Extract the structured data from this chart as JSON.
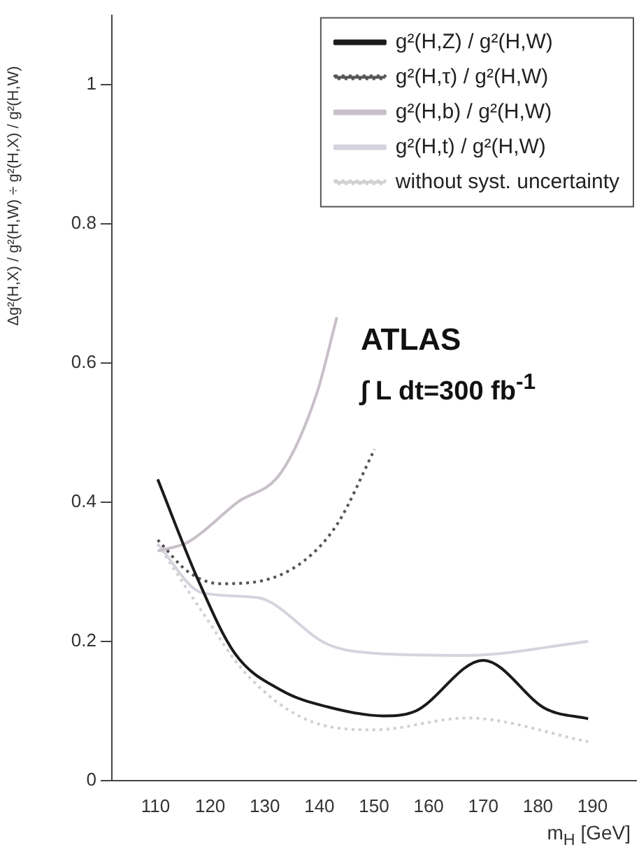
{
  "chart_data": {
    "type": "line",
    "xlabel": "m$_{H}$ [GeV]",
    "ylabel": "Δg²(H,X) / g²(H,W) ÷ g²(H,X) / g²(H,W)",
    "xlim": [
      102,
      198
    ],
    "xticks": [
      110,
      120,
      130,
      140,
      150,
      160,
      170,
      180,
      190
    ],
    "ylim": [
      0,
      1.1
    ],
    "yticks": [
      0,
      0.2,
      0.4,
      0.6,
      0.8,
      1
    ],
    "grid": false,
    "legend": "top right",
    "marker": "none",
    "annotations": [
      "ATLAS",
      "∫ L dt=300 fb$^{-1}$"
    ],
    "series": [
      {
        "name": "g²(H,Z) / g²(H,W)",
        "color": "#1a1a1a",
        "line_style": "solid",
        "x": [
          110.4,
          117.7,
          124.5,
          133,
          141.5,
          151.7,
          157.6,
          170,
          181.5,
          189.2
        ],
        "values": [
          0.433,
          0.29,
          0.183,
          0.13,
          0.106,
          0.093,
          0.1,
          0.173,
          0.103,
          0.089
        ]
      },
      {
        "name": "g²(H,τ) / g²(H,W)",
        "color": "#555555",
        "line_style": "dotted",
        "x": [
          110.4,
          116,
          121.9,
          128.7,
          137.2,
          143.3,
          150.1
        ],
        "values": [
          0.346,
          0.3,
          0.283,
          0.286,
          0.316,
          0.369,
          0.476
        ]
      },
      {
        "name": "g²(H,b) / g²(H,W)",
        "color": "#c8c0c8",
        "line_style": "solid",
        "x": [
          110.4,
          116,
          125,
          133,
          139.5,
          143.2
        ],
        "values": [
          0.33,
          0.343,
          0.4,
          0.443,
          0.556,
          0.666
        ]
      },
      {
        "name": "g²(H,t) / g²(H,W)",
        "color": "#d4d4de",
        "line_style": "solid",
        "x": [
          110.4,
          118.5,
          128.7,
          141.5,
          150.1,
          167,
          189.2
        ],
        "values": [
          0.34,
          0.27,
          0.263,
          0.196,
          0.183,
          0.18,
          0.2
        ]
      },
      {
        "name": "without syst. uncertainty",
        "color": "#d0d0d0",
        "line_style": "dotted",
        "x": [
          110.4,
          118.5,
          126.3,
          137,
          150,
          167,
          189.2
        ],
        "values": [
          0.34,
          0.243,
          0.156,
          0.09,
          0.073,
          0.09,
          0.056
        ]
      }
    ]
  }
}
